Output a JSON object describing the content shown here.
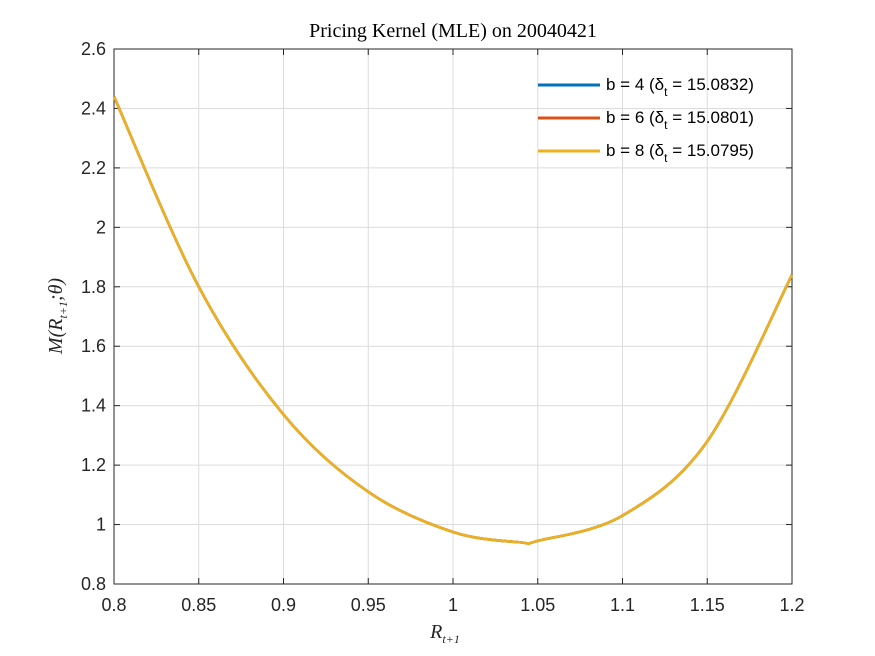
{
  "chart_data": {
    "type": "line",
    "title": "Pricing Kernel (MLE) on 20040421",
    "xlabel": "R",
    "xlabel_sub": "t+1",
    "ylabel": "M(R",
    "ylabel_sub": "t+1",
    "ylabel_tail": ";θ)",
    "xlim": [
      0.8,
      1.2
    ],
    "ylim": [
      0.8,
      2.6
    ],
    "xticks": [
      "0.8",
      "0.85",
      "0.9",
      "0.95",
      "1",
      "1.05",
      "1.1",
      "1.15",
      "1.2"
    ],
    "yticks": [
      "0.8",
      "1",
      "1.2",
      "1.4",
      "1.6",
      "1.8",
      "2",
      "2.2",
      "2.4",
      "2.6"
    ],
    "grid": true,
    "legend_position": "top-right",
    "x": [
      0.8,
      0.85,
      0.9,
      0.95,
      1.0,
      1.04,
      1.05,
      1.1,
      1.15,
      1.2
    ],
    "series": [
      {
        "name": "b = 4 (δ",
        "name_sub": "t",
        "name_tail": " = 15.0832)",
        "color": "#0072BD",
        "values": [
          2.44,
          1.8,
          1.37,
          1.11,
          0.975,
          0.94,
          0.945,
          1.03,
          1.28,
          1.84
        ]
      },
      {
        "name": "b = 6 (δ",
        "name_sub": "t",
        "name_tail": " = 15.0801)",
        "color": "#D95319",
        "values": [
          2.44,
          1.8,
          1.37,
          1.11,
          0.975,
          0.94,
          0.945,
          1.03,
          1.28,
          1.84
        ]
      },
      {
        "name": "b = 8 (δ",
        "name_sub": "t",
        "name_tail": " = 15.0795)",
        "color": "#EDB120",
        "values": [
          2.44,
          1.8,
          1.37,
          1.11,
          0.975,
          0.94,
          0.945,
          1.03,
          1.28,
          1.84
        ]
      }
    ]
  }
}
